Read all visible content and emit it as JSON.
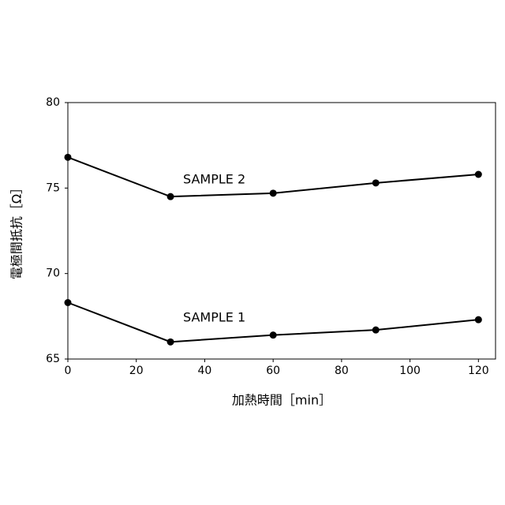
{
  "chart_data": {
    "type": "line",
    "x_label": "加熱時間［min］",
    "y_label": "電極間抵抗［Ω］",
    "x": [
      0,
      30,
      60,
      90,
      120
    ],
    "series": [
      {
        "name": "SAMPLE 1",
        "color": "#000000",
        "values": [
          68.3,
          66.0,
          66.4,
          66.7,
          67.3
        ]
      },
      {
        "name": "SAMPLE 2",
        "color": "#000000",
        "values": [
          76.8,
          74.5,
          74.7,
          75.3,
          75.8
        ]
      }
    ],
    "xlim": [
      0,
      125
    ],
    "xticks": [
      0,
      20,
      40,
      60,
      80,
      100,
      120
    ],
    "ylim": [
      65,
      80
    ],
    "yticks": [
      65,
      70,
      75,
      80
    ],
    "grid": false
  }
}
